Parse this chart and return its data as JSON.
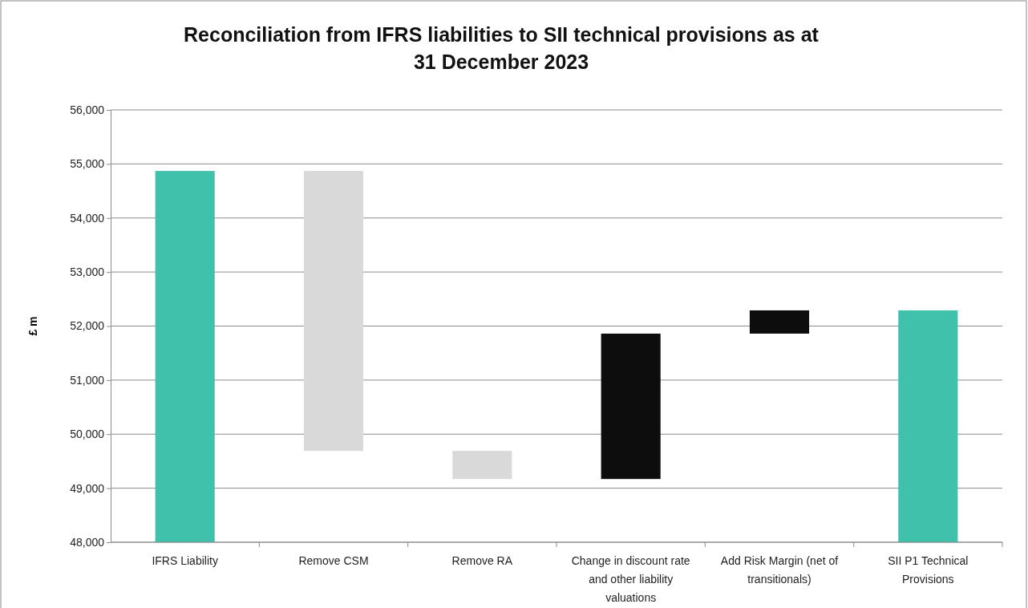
{
  "chart_data": {
    "type": "bar",
    "title": "Reconciliation from IFRS liabilities to SII technical provisions as at 31 December 2023",
    "ylabel": "£ m",
    "categories": [
      "IFRS Liability",
      "Remove CSM",
      "Remove RA",
      "Change in discount rate and other liability valuations",
      "Add Risk Margin (net of transitionals)",
      "SII P1 Technical Provisions"
    ],
    "values": [
      54870,
      -5180,
      -520,
      2690,
      430,
      52290
    ],
    "base": [
      0,
      54870,
      49690,
      49170,
      51860,
      0
    ],
    "colors": [
      "#40c1ac",
      "#d9d9d9",
      "#d9d9d9",
      "#0d0d0d",
      "#0d0d0d",
      "#40c1ac"
    ],
    "ylim": [
      48000,
      56000
    ],
    "yticks": [
      {
        "value": 48000,
        "label": "48,000"
      },
      {
        "value": 49000,
        "label": "49,000"
      },
      {
        "value": 50000,
        "label": "50,000"
      },
      {
        "value": 51000,
        "label": "51,000"
      },
      {
        "value": 52000,
        "label": "52,000"
      },
      {
        "value": 53000,
        "label": "53,000"
      },
      {
        "value": 54000,
        "label": "54,000"
      },
      {
        "value": 55000,
        "label": "55,000"
      },
      {
        "value": 56000,
        "label": "56,000"
      }
    ],
    "grid": "y"
  }
}
